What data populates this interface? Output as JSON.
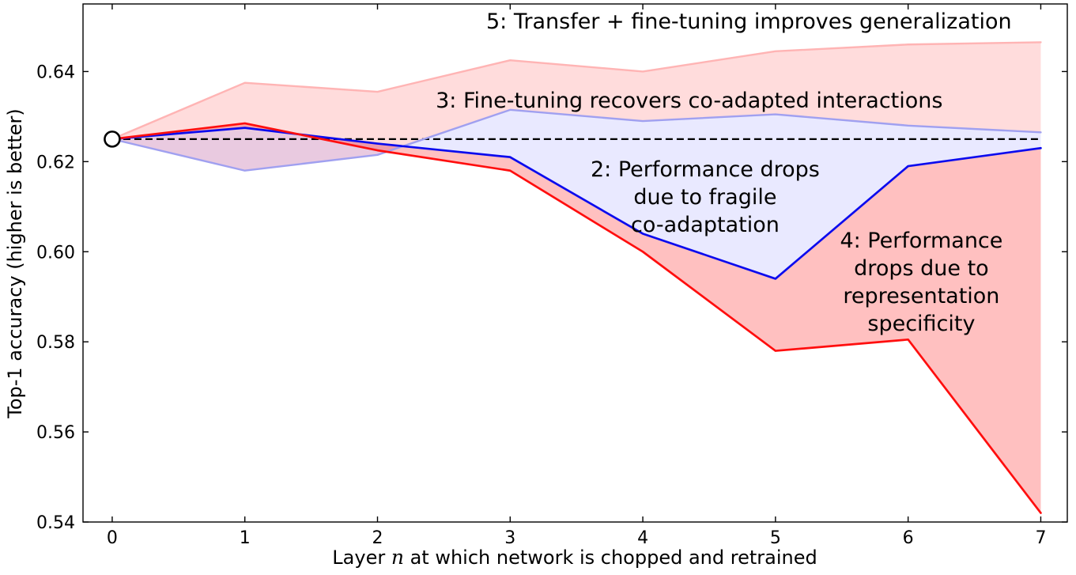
{
  "chart_data": {
    "type": "line",
    "title": "",
    "xlabel": "Layer n at which network is chopped and retrained",
    "xlabel_parts": {
      "pre": "Layer ",
      "var": "n",
      "post": " at which network is chopped and retrained"
    },
    "ylabel": "Top-1 accuracy (higher is better)",
    "x": [
      0,
      1,
      2,
      3,
      4,
      5,
      6,
      7
    ],
    "xlim": [
      -0.22,
      7.2
    ],
    "ylim": [
      0.54,
      0.655
    ],
    "grid": false,
    "legend": "none",
    "xticks": [
      {
        "v": 0,
        "label": "0"
      },
      {
        "v": 1,
        "label": "1"
      },
      {
        "v": 2,
        "label": "2"
      },
      {
        "v": 3,
        "label": "3"
      },
      {
        "v": 4,
        "label": "4"
      },
      {
        "v": 5,
        "label": "5"
      },
      {
        "v": 6,
        "label": "6"
      },
      {
        "v": 7,
        "label": "7"
      }
    ],
    "yticks": [
      {
        "v": 0.54,
        "label": "0.54"
      },
      {
        "v": 0.56,
        "label": "0.56"
      },
      {
        "v": 0.58,
        "label": "0.58"
      },
      {
        "v": 0.6,
        "label": "0.60"
      },
      {
        "v": 0.62,
        "label": "0.62"
      },
      {
        "v": 0.64,
        "label": "0.64"
      }
    ],
    "baseline": {
      "value": 0.625,
      "style": "dashed",
      "color": "#000000"
    },
    "start_marker": {
      "x": 0,
      "y": 0.625,
      "radius": 9.5,
      "fill": "#ffffff",
      "stroke": "#000000"
    },
    "series": [
      {
        "id": "pink-line",
        "color": "#ffb4b4",
        "width": 2.4,
        "values": [
          0.625,
          0.6375,
          0.6355,
          0.6425,
          0.64,
          0.6445,
          0.646,
          0.6465
        ]
      },
      {
        "id": "lightblue-line",
        "color": "#a0a0f0",
        "width": 2.4,
        "values": [
          0.625,
          0.618,
          0.6215,
          0.6315,
          0.629,
          0.6305,
          0.628,
          0.6265
        ]
      },
      {
        "id": "blue-line",
        "color": "#0b0bee",
        "width": 2.7,
        "values": [
          0.625,
          0.6275,
          0.624,
          0.621,
          0.604,
          0.594,
          0.619,
          0.623
        ]
      },
      {
        "id": "red-line",
        "color": "#ff0e0e",
        "width": 2.7,
        "values": [
          0.625,
          0.6285,
          0.6225,
          0.618,
          0.6,
          0.578,
          0.5805,
          0.542
        ]
      }
    ],
    "fills": [
      {
        "upper": "pink-line",
        "lower": "lightblue-line",
        "color": "rgba(255,80,80,0.20)"
      },
      {
        "upper": "lightblue-line",
        "lower": "blue-line",
        "color": "rgba(70,70,255,0.12)"
      },
      {
        "upper": "blue-line",
        "lower": "red-line",
        "color": "rgba(255,45,45,0.30)"
      }
    ],
    "annotations": [
      {
        "id": "note-5",
        "x": 4.8,
        "y": 0.6496,
        "size": 27,
        "line_height": 35,
        "lines": [
          "5: Transfer + fine-tuning improves generalization"
        ]
      },
      {
        "id": "note-3",
        "x": 4.35,
        "y": 0.632,
        "size": 27,
        "line_height": 35,
        "lines": [
          "3: Fine-tuning recovers co-adapted interactions"
        ]
      },
      {
        "id": "note-2",
        "x": 4.47,
        "y": 0.6167,
        "size": 27,
        "line_height": 35,
        "lines": [
          "2: Performance drops",
          "due to fragile",
          "co-adaptation"
        ]
      },
      {
        "id": "note-4",
        "x": 6.1,
        "y": 0.6009,
        "size": 27,
        "line_height": 35,
        "lines": [
          "4: Performance",
          "drops due to",
          "representation",
          "specificity"
        ]
      }
    ]
  }
}
